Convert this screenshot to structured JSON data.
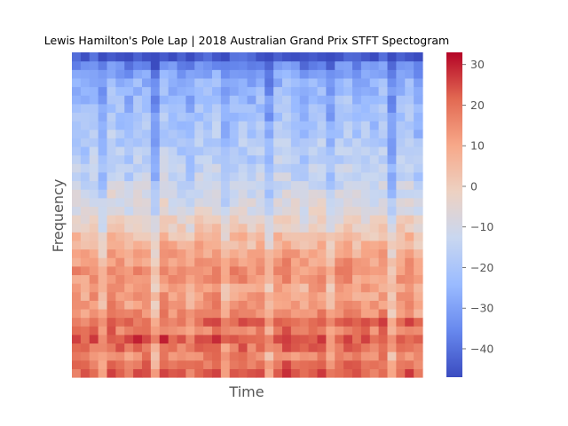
{
  "chart_data": {
    "type": "heatmap",
    "title": "Lewis Hamilton's Pole Lap | 2018 Australian Grand Prix STFT Spectogram",
    "xlabel": "Time",
    "ylabel": "Frequency",
    "x_ticks_shown": false,
    "y_ticks_shown": false,
    "colormap": "coolwarm",
    "colorbar": {
      "range": [
        -47,
        33
      ],
      "ticks": [
        -40,
        -30,
        -20,
        -10,
        0,
        10,
        20,
        30
      ],
      "tick_labels": [
        "−40",
        "−30",
        "−20",
        "−10",
        "0",
        "10",
        "20",
        "30"
      ]
    },
    "band_levels_low_to_high_frequency": [
      22,
      20,
      16,
      20,
      24,
      18,
      21,
      15,
      13,
      12,
      11,
      13,
      15,
      12,
      10,
      7,
      4,
      0,
      -3,
      -6,
      -8,
      -10,
      -12,
      -14,
      -15,
      -16,
      -17,
      -18,
      -19,
      -20,
      -21,
      -22,
      -23,
      -24,
      -26,
      -28,
      -34,
      -44
    ],
    "time_level_offsets": [
      0,
      -2,
      1,
      -8,
      2,
      0,
      -3,
      1,
      0,
      -10,
      2,
      0,
      -1,
      -4,
      1,
      0,
      2,
      -6,
      0,
      1,
      -2,
      0,
      -9,
      1,
      2,
      0,
      -3,
      0,
      1,
      -7,
      0,
      2,
      -1,
      0,
      -2,
      1,
      -11,
      0,
      1,
      -4
    ]
  },
  "colors": {
    "cmap_stops": [
      "#3b4cc0",
      "#6788ee",
      "#9abbff",
      "#c9d7f0",
      "#edd1c2",
      "#f7a889",
      "#e26952",
      "#b40426"
    ],
    "text": "#555555",
    "title_text": "#000000"
  }
}
